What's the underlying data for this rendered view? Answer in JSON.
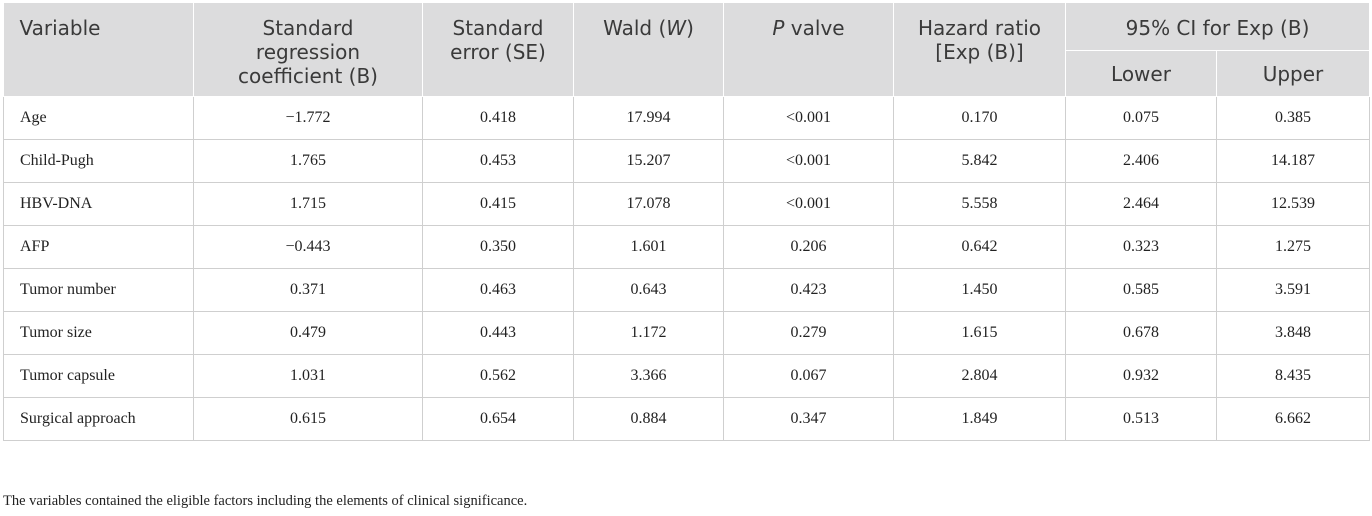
{
  "table": {
    "header": {
      "columns": [
        "Variable",
        "Standard regression coefficient (B)",
        "Standard error (SE)",
        [
          "Wald (",
          "W",
          ")"
        ],
        [
          "P",
          " valve"
        ],
        "Hazard ratio [Exp (B)]"
      ],
      "ci_group": "95% CI for Exp (B)",
      "ci_sub": [
        "Lower",
        "Upper"
      ]
    },
    "rows": [
      [
        "Age",
        "−1.772",
        "0.418",
        "17.994",
        "<0.001",
        "0.170",
        "0.075",
        "0.385"
      ],
      [
        "Child-Pugh",
        "1.765",
        "0.453",
        "15.207",
        "<0.001",
        "5.842",
        "2.406",
        "14.187"
      ],
      [
        "HBV-DNA",
        "1.715",
        "0.415",
        "17.078",
        "<0.001",
        "5.558",
        "2.464",
        "12.539"
      ],
      [
        "AFP",
        "−0.443",
        "0.350",
        "1.601",
        "0.206",
        "0.642",
        "0.323",
        "1.275"
      ],
      [
        "Tumor number",
        "0.371",
        "0.463",
        "0.643",
        "0.423",
        "1.450",
        "0.585",
        "3.591"
      ],
      [
        "Tumor size",
        "0.479",
        "0.443",
        "1.172",
        "0.279",
        "1.615",
        "0.678",
        "3.848"
      ],
      [
        "Tumor capsule",
        "1.031",
        "0.562",
        "3.366",
        "0.067",
        "2.804",
        "0.932",
        "8.435"
      ],
      [
        "Surgical approach",
        "0.615",
        "0.654",
        "0.884",
        "0.347",
        "1.849",
        "0.513",
        "6.662"
      ]
    ],
    "footnote": "The variables contained the eligible factors including the elements of clinical significance."
  }
}
